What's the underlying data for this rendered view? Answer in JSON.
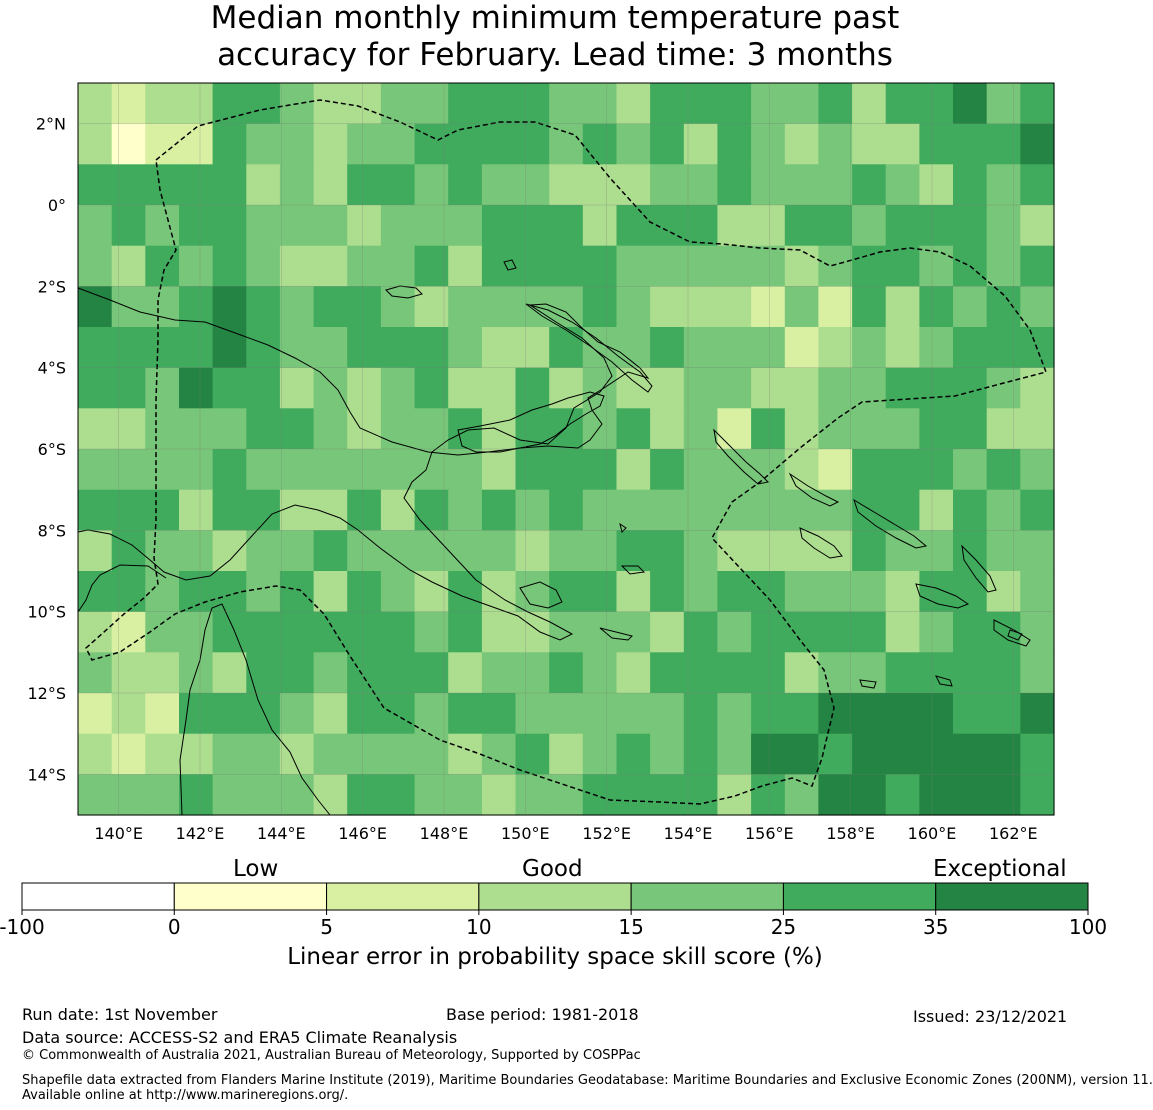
{
  "title": {
    "line1": "Median monthly minimum temperature past",
    "line2": "accuracy for February. Lead time: 3 months"
  },
  "map": {
    "lon_labels": [
      "140°E",
      "142°E",
      "144°E",
      "146°E",
      "148°E",
      "150°E",
      "152°E",
      "154°E",
      "156°E",
      "158°E",
      "160°E",
      "162°E"
    ],
    "lat_labels": [
      "2°N",
      "0°",
      "2°S",
      "4°S",
      "6°S",
      "8°S",
      "10°S",
      "12°S",
      "14°S"
    ],
    "extent": {
      "lon_min": 139.0,
      "lon_max": 163.0,
      "lat_min": -15.0,
      "lat_max": 3.0
    }
  },
  "colorbar": {
    "category_labels": [
      "Low",
      "Good",
      "Exceptional"
    ],
    "tick_labels": [
      "-100",
      "0",
      "5",
      "10",
      "15",
      "25",
      "35",
      "100"
    ],
    "colors": [
      "#ffffff",
      "#ffffcc",
      "#d9f0a3",
      "#addd8e",
      "#78c679",
      "#41ab5d",
      "#238443"
    ],
    "title": "Linear error in probability space skill score (%)"
  },
  "footer": {
    "run_date": "Run date: 1st November",
    "base_period": "Base period: 1981-2018",
    "issued": "Issued: 23/12/2021",
    "data_source": "Data source: ACCESS-S2 and ERA5 Climate Reanalysis",
    "copyright": "© Commonwealth of Australia 2021, Australian Bureau of Meteorology, Supported by COSPPac",
    "shapefile_line1": "Shapefile data extracted from Flanders Marine Institute (2019), Maritime Boundaries Geodatabase: Maritime Boundaries and Exclusive Economic Zones (200NM), version 11.",
    "shapefile_line2": "Available online at http://www.marineregions.org/."
  }
}
